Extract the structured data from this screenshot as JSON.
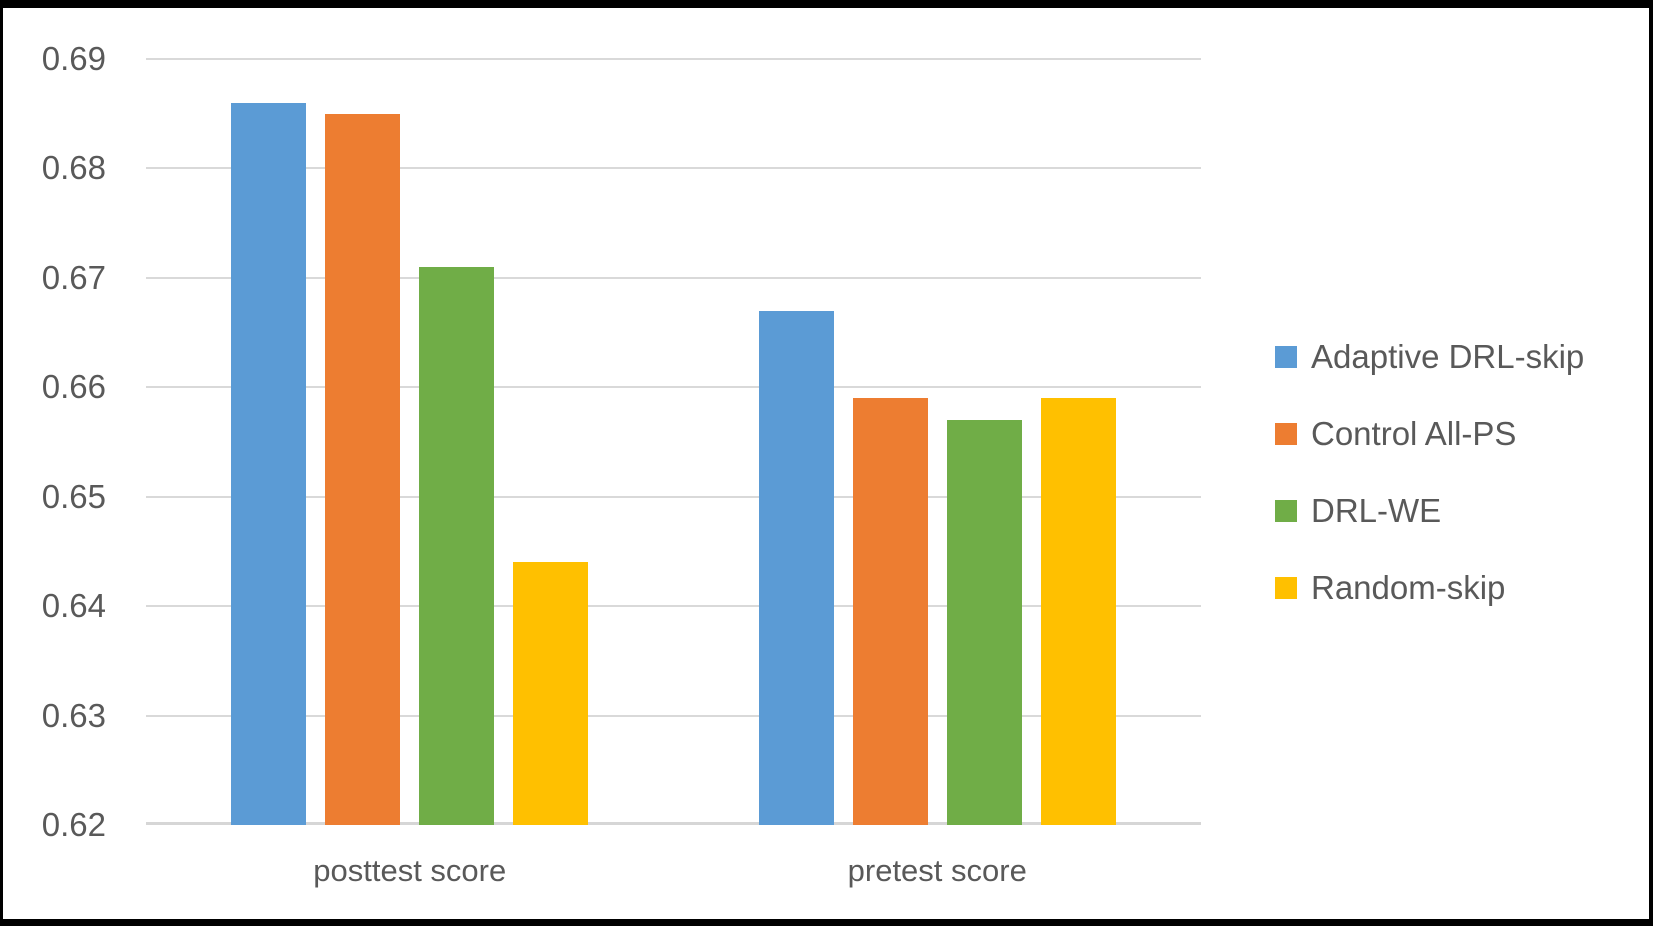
{
  "chart_data": {
    "type": "bar",
    "title": "",
    "categories": [
      "posttest score",
      "pretest score"
    ],
    "series": [
      {
        "name": "Adaptive DRL-skip",
        "color": "#5B9BD5",
        "values": [
          0.686,
          0.667
        ]
      },
      {
        "name": "Control All-PS",
        "color": "#ED7D31",
        "values": [
          0.685,
          0.659
        ]
      },
      {
        "name": "DRL-WE",
        "color": "#70AD47",
        "values": [
          0.671,
          0.657
        ]
      },
      {
        "name": "Random-skip",
        "color": "#FFC000",
        "values": [
          0.644,
          0.659
        ]
      }
    ],
    "ylim": [
      0.62,
      0.69
    ],
    "ytick_step": 0.01,
    "ytick_labels": [
      "0.69",
      "0.68",
      "0.67",
      "0.66",
      "0.65",
      "0.64",
      "0.63",
      "0.62"
    ],
    "grid": true,
    "legend_position": "right"
  },
  "colors": {
    "text": "#595959",
    "gridline": "#D9D9D9",
    "axis_line": "#D6D6D6",
    "background": "#FFFFFF",
    "frame_border": "#000000"
  }
}
